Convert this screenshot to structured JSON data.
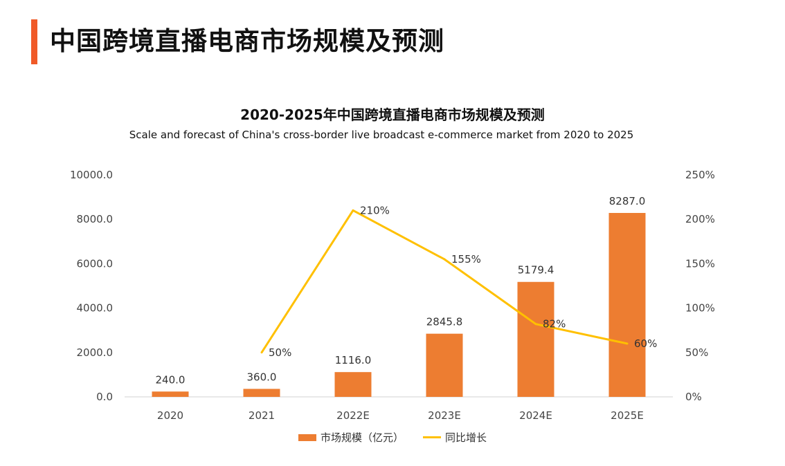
{
  "page": {
    "title": "中国跨境直播电商市场规模及预测"
  },
  "colors": {
    "accent": "#f05a28",
    "bar": "#ed7d31",
    "line": "#ffc000",
    "axis": "#d0d0d0"
  },
  "chart_data": {
    "type": "bar",
    "title": "2020-2025年中国跨境直播电商市场规模及预测",
    "subtitle": "Scale and forecast of China's cross-border live broadcast e-commerce market from 2020 to 2025",
    "categories": [
      "2020",
      "2021",
      "2022E",
      "2023E",
      "2024E",
      "2025E"
    ],
    "series": [
      {
        "name": "市场规模（亿元）",
        "type": "bar",
        "axis": "left",
        "values": [
          240.0,
          360.0,
          1116.0,
          2845.8,
          5179.4,
          8287.0
        ],
        "labels": [
          "240.0",
          "360.0",
          "1116.0",
          "2845.8",
          "5179.4",
          "8287.0"
        ]
      },
      {
        "name": "同比增长",
        "type": "line",
        "axis": "right",
        "values": [
          null,
          50,
          210,
          155,
          82,
          60
        ],
        "labels": [
          "",
          "50%",
          "210%",
          "155%",
          "82%",
          "60%"
        ]
      }
    ],
    "y_left": {
      "min": 0,
      "max": 10000,
      "ticks": [
        "0.0",
        "2000.0",
        "4000.0",
        "6000.0",
        "8000.0",
        "10000.0"
      ]
    },
    "y_right": {
      "min": 0,
      "max": 250,
      "ticks": [
        "0%",
        "50%",
        "100%",
        "150%",
        "200%",
        "250%"
      ]
    },
    "grid": false,
    "legend": "bottom"
  }
}
